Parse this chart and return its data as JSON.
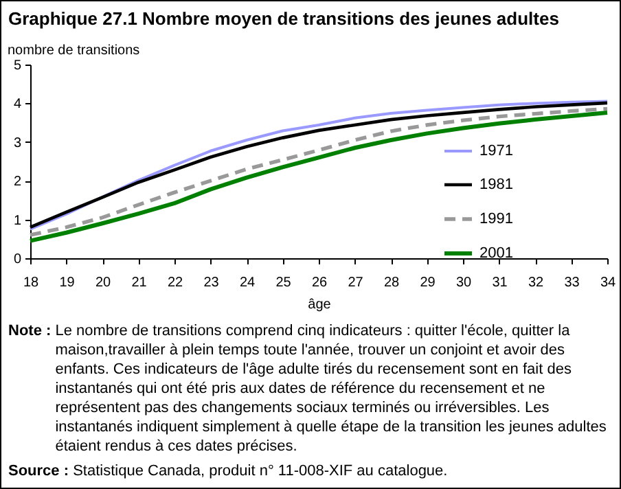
{
  "chart_data": {
    "type": "line",
    "title": "Graphique 27.1 Nombre moyen de transitions des jeunes adultes",
    "xlabel": "âge",
    "ylabel": "nombre de transitions",
    "x": [
      18,
      19,
      20,
      21,
      22,
      23,
      24,
      25,
      26,
      27,
      28,
      29,
      30,
      31,
      32,
      33,
      34
    ],
    "series": [
      {
        "name": "1971",
        "color": "#9999ff",
        "line_style": "solid",
        "values": [
          0.75,
          1.14,
          1.58,
          2.01,
          2.4,
          2.77,
          3.05,
          3.29,
          3.44,
          3.62,
          3.74,
          3.82,
          3.89,
          3.96,
          4.0,
          4.03,
          4.05
        ]
      },
      {
        "name": "1981",
        "color": "#000000",
        "line_style": "solid",
        "values": [
          0.8,
          1.19,
          1.57,
          1.96,
          2.28,
          2.61,
          2.88,
          3.11,
          3.3,
          3.44,
          3.58,
          3.68,
          3.76,
          3.84,
          3.91,
          3.96,
          4.01
        ]
      },
      {
        "name": "1991",
        "color": "#999999",
        "line_style": "dashed",
        "values": [
          0.6,
          0.8,
          1.05,
          1.38,
          1.7,
          2.0,
          2.3,
          2.54,
          2.79,
          3.05,
          3.28,
          3.44,
          3.56,
          3.66,
          3.73,
          3.8,
          3.86
        ]
      },
      {
        "name": "2001",
        "color": "#008000",
        "line_style": "solid",
        "values": [
          0.45,
          0.66,
          0.9,
          1.15,
          1.42,
          1.78,
          2.08,
          2.35,
          2.6,
          2.85,
          3.05,
          3.22,
          3.36,
          3.48,
          3.58,
          3.67,
          3.76
        ]
      }
    ],
    "xlim": [
      18,
      34
    ],
    "xticks": [
      18,
      19,
      20,
      21,
      22,
      23,
      24,
      25,
      26,
      27,
      28,
      29,
      30,
      31,
      32,
      33,
      34
    ],
    "ylim": [
      0,
      5
    ],
    "yticks": [
      0,
      1,
      2,
      3,
      4,
      5
    ],
    "grid": false,
    "legend": "right",
    "marker": "none",
    "annotations": [
      "Note : Le nombre de transitions comprend cinq indicateurs : quitter l'école, quitter la maison,travailler à plein temps toute l'année, trouver un conjoint et avoir des enfants. Ces indicateurs de l'âge adulte tirés du recensement sont en fait des instantanés qui ont été pris aux dates de référence du recensement et ne représentent pas des changements sociaux terminés ou irréversibles. Les instantanés indiquent simplement à quelle étape de la transition les jeunes adultes étaient rendus à ces dates précises.",
      "Source : Statistique Canada, produit n° 11-008-XIF au catalogue."
    ]
  }
}
